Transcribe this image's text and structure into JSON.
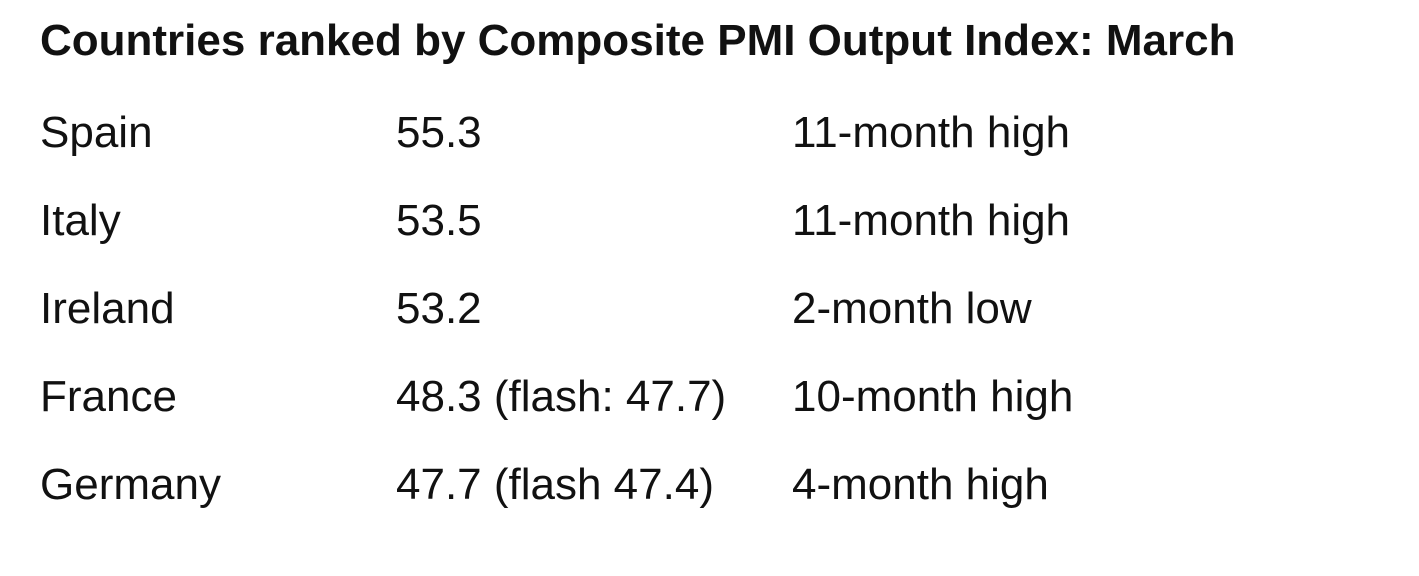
{
  "header": {
    "title": "Countries ranked by Composite PMI Output Index: March"
  },
  "table": {
    "rows": [
      [
        "Spain",
        "55.3",
        "11-month high"
      ],
      [
        "Italy",
        "53.5",
        "11-month high"
      ],
      [
        "Ireland",
        "53.2",
        "2-month low"
      ],
      [
        "France",
        "48.3 (flash: 47.7)",
        "10-month high"
      ],
      [
        "Germany",
        "47.7 (flash 47.4)",
        "4-month high"
      ]
    ]
  }
}
